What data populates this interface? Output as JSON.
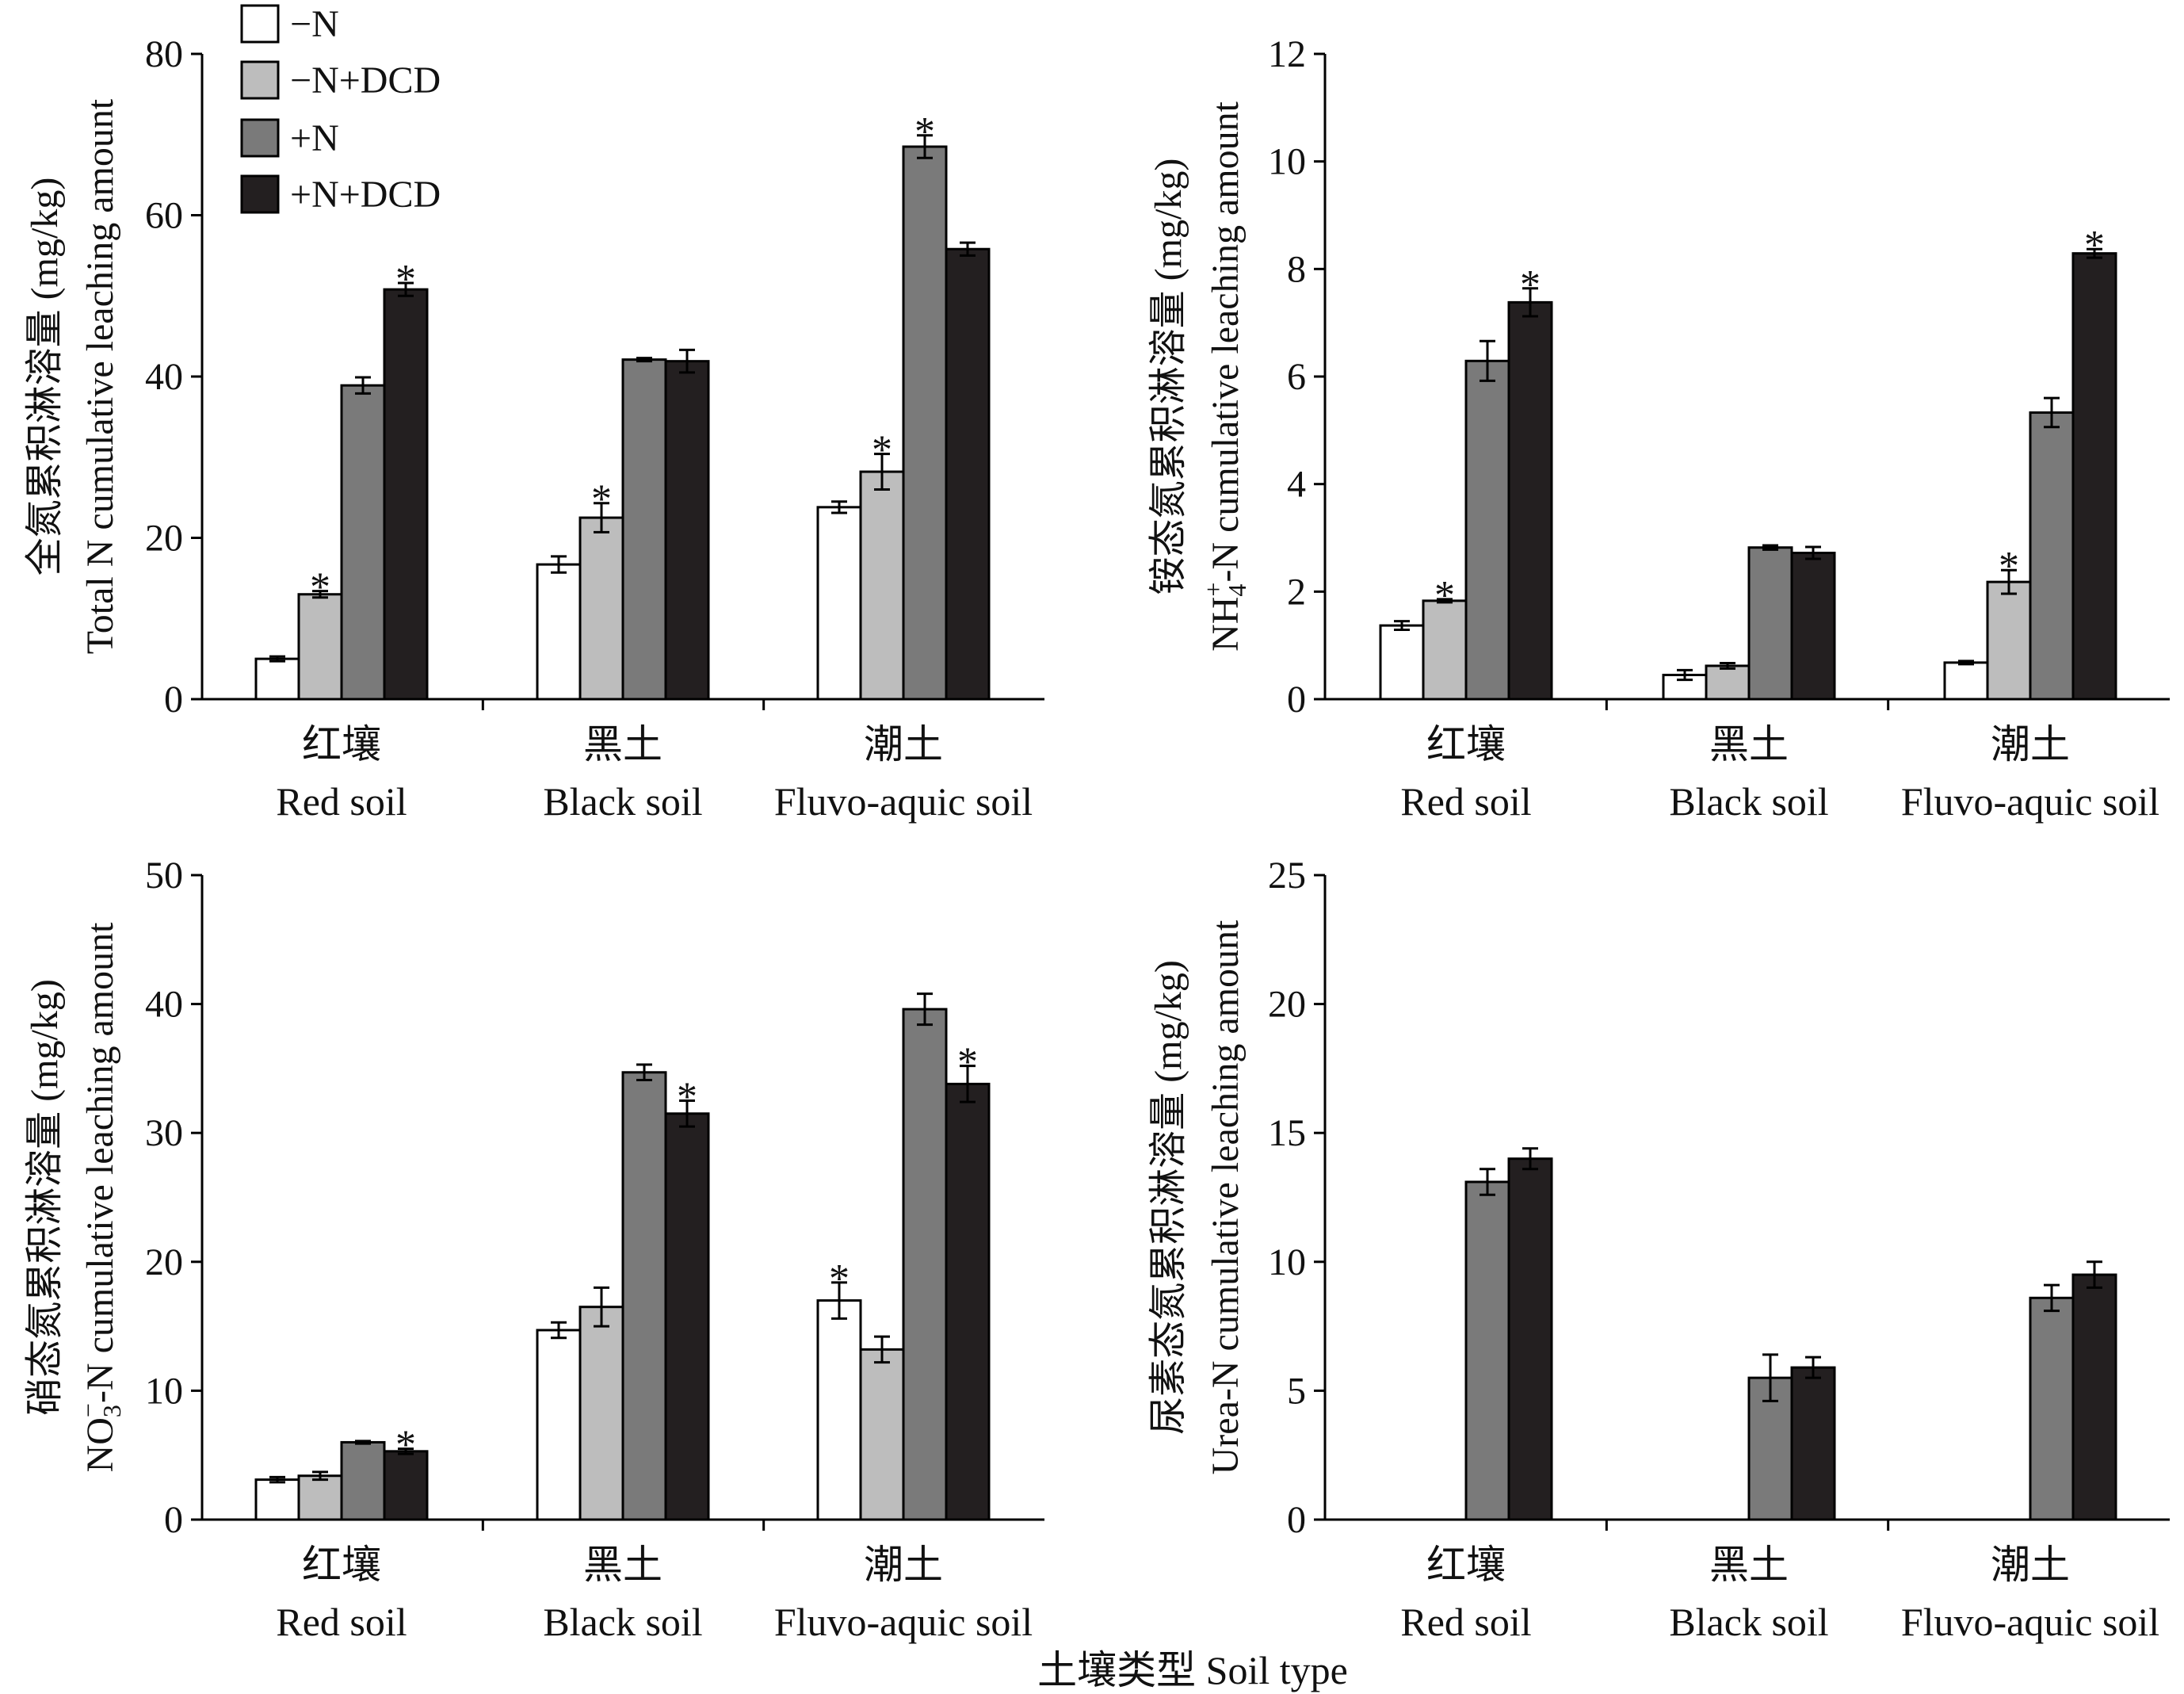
{
  "figure": {
    "x_axis_label": "土壤类型 Soil type",
    "legend": [
      "−N",
      "−N+DCD",
      "+N",
      "+N+DCD"
    ],
    "colors": {
      "−N": "#ffffff",
      "−N+DCD": "#bdbdbd",
      "+N": "#7a7a7a",
      "+N+DCD": "#231f20",
      "stroke": "#000000"
    }
  },
  "chart_data": [
    {
      "type": "bar",
      "panel": "total-n",
      "ylabel_cn": "全氮累积淋溶量 (mg/kg)",
      "ylabel_en": "Total N cumulative leaching amount",
      "categories": [
        {
          "cn": "红壤",
          "en": "Red soil"
        },
        {
          "cn": "黑土",
          "en": "Black soil"
        },
        {
          "cn": "潮土",
          "en": "Fluvo-aquic soil"
        }
      ],
      "ylim": [
        0,
        80
      ],
      "yticks": [
        0,
        20,
        40,
        60,
        80
      ],
      "series": [
        {
          "name": "−N",
          "values": [
            5.0,
            16.7,
            23.8
          ],
          "errors": [
            0.3,
            1.0,
            0.7
          ],
          "sig": [
            false,
            false,
            false
          ]
        },
        {
          "name": "−N+DCD",
          "values": [
            13.0,
            22.5,
            28.2
          ],
          "errors": [
            0.4,
            1.8,
            2.2
          ],
          "sig": [
            true,
            true,
            true
          ]
        },
        {
          "name": "+N",
          "values": [
            38.9,
            42.1,
            68.5
          ],
          "errors": [
            1.0,
            0.2,
            1.4
          ],
          "sig": [
            false,
            false,
            true
          ]
        },
        {
          "name": "+N+DCD",
          "values": [
            50.8,
            41.9,
            55.8
          ],
          "errors": [
            0.8,
            1.4,
            0.8
          ],
          "sig": [
            true,
            false,
            false
          ]
        }
      ]
    },
    {
      "type": "bar",
      "panel": "nh4-n",
      "ylabel_cn": "铵态氮累积淋溶量 (mg/kg)",
      "ylabel_en_main": "NH",
      "ylabel_en_sub": "4",
      "ylabel_en_sup": "+",
      "ylabel_en_rest": "-N cumulative leaching amount",
      "categories": [
        {
          "cn": "红壤",
          "en": "Red soil"
        },
        {
          "cn": "黑土",
          "en": "Black soil"
        },
        {
          "cn": "潮土",
          "en": "Fluvo-aquic soil"
        }
      ],
      "ylim": [
        0,
        12
      ],
      "yticks": [
        0,
        2,
        4,
        6,
        8,
        10,
        12
      ],
      "series": [
        {
          "name": "−N",
          "values": [
            1.37,
            0.45,
            0.68
          ],
          "errors": [
            0.08,
            0.09,
            0.03
          ],
          "sig": [
            false,
            false,
            false
          ]
        },
        {
          "name": "−N+DCD",
          "values": [
            1.83,
            0.62,
            2.18
          ],
          "errors": [
            0.03,
            0.05,
            0.22
          ],
          "sig": [
            true,
            false,
            true
          ]
        },
        {
          "name": "+N",
          "values": [
            6.29,
            2.82,
            5.33
          ],
          "errors": [
            0.37,
            0.04,
            0.27
          ],
          "sig": [
            false,
            false,
            false
          ]
        },
        {
          "name": "+N+DCD",
          "values": [
            7.38,
            2.72,
            8.29
          ],
          "errors": [
            0.26,
            0.11,
            0.08
          ],
          "sig": [
            true,
            false,
            true
          ]
        }
      ]
    },
    {
      "type": "bar",
      "panel": "no3-n",
      "ylabel_cn": "硝态氮累积淋溶量 (mg/kg)",
      "ylabel_en_main": "NO",
      "ylabel_en_sub": "3",
      "ylabel_en_sup": "−",
      "ylabel_en_rest": "-N cumulative leaching amount",
      "categories": [
        {
          "cn": "红壤",
          "en": "Red soil"
        },
        {
          "cn": "黑土",
          "en": "Black soil"
        },
        {
          "cn": "潮土",
          "en": "Fluvo-aquic soil"
        }
      ],
      "ylim": [
        0,
        50
      ],
      "yticks": [
        0,
        10,
        20,
        30,
        40,
        50
      ],
      "series": [
        {
          "name": "−N",
          "values": [
            3.1,
            14.7,
            17.0
          ],
          "errors": [
            0.2,
            0.6,
            1.4
          ],
          "sig": [
            false,
            false,
            true
          ]
        },
        {
          "name": "−N+DCD",
          "values": [
            3.4,
            16.5,
            13.2
          ],
          "errors": [
            0.3,
            1.5,
            1.0
          ],
          "sig": [
            false,
            false,
            false
          ]
        },
        {
          "name": "+N",
          "values": [
            6.0,
            34.7,
            39.6
          ],
          "errors": [
            0.1,
            0.6,
            1.2
          ],
          "sig": [
            false,
            false,
            false
          ]
        },
        {
          "name": "+N+DCD",
          "values": [
            5.3,
            31.5,
            33.8
          ],
          "errors": [
            0.2,
            1.0,
            1.4
          ],
          "sig": [
            true,
            true,
            true
          ]
        }
      ]
    },
    {
      "type": "bar",
      "panel": "urea-n",
      "ylabel_cn": "尿素态氮累积淋溶量 (mg/kg)",
      "ylabel_en": "Urea-N cumulative leaching amount",
      "categories": [
        {
          "cn": "红壤",
          "en": "Red soil"
        },
        {
          "cn": "黑土",
          "en": "Black soil"
        },
        {
          "cn": "潮土",
          "en": "Fluvo-aquic soil"
        }
      ],
      "ylim": [
        0,
        25
      ],
      "yticks": [
        0,
        5,
        10,
        15,
        20,
        25
      ],
      "series": [
        {
          "name": "−N",
          "values": [
            0,
            0,
            0
          ],
          "errors": [
            0,
            0,
            0
          ],
          "sig": [
            false,
            false,
            false
          ]
        },
        {
          "name": "−N+DCD",
          "values": [
            0,
            0,
            0
          ],
          "errors": [
            0,
            0,
            0
          ],
          "sig": [
            false,
            false,
            false
          ]
        },
        {
          "name": "+N",
          "values": [
            13.1,
            5.5,
            8.6
          ],
          "errors": [
            0.5,
            0.9,
            0.5
          ],
          "sig": [
            false,
            false,
            false
          ]
        },
        {
          "name": "+N+DCD",
          "values": [
            14.0,
            5.9,
            9.5
          ],
          "errors": [
            0.4,
            0.4,
            0.5
          ],
          "sig": [
            false,
            false,
            false
          ]
        }
      ]
    }
  ]
}
